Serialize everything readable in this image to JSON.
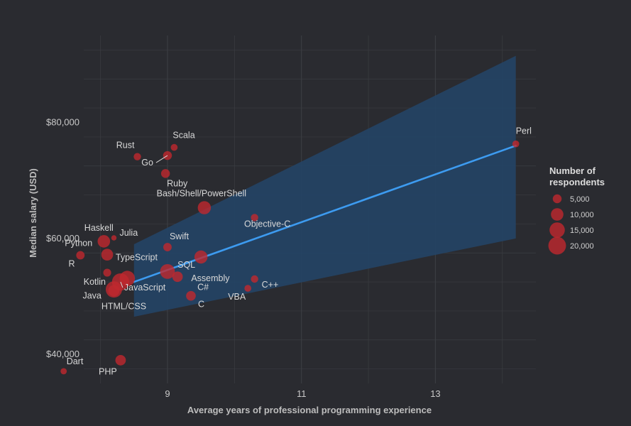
{
  "chart_data": {
    "type": "scatter",
    "x_label": "Average years of professional programming experience",
    "y_label": "Median salary (USD)",
    "xlim": [
      7.75,
      14.5
    ],
    "ylim": [
      35000,
      95000
    ],
    "x_ticks": [
      9,
      11,
      13
    ],
    "x_tick_labels": [
      "9",
      "11",
      "13"
    ],
    "y_ticks": [
      40000,
      60000,
      80000
    ],
    "y_tick_labels": [
      "$40,000",
      "$60,000",
      "$80,000"
    ],
    "regression": {
      "x_start": 8.5,
      "y_start": 52500,
      "x_end": 14.2,
      "y_end": 76000,
      "band_start": [
        46500,
        59000
      ],
      "band_end": [
        60000,
        91500
      ]
    },
    "points": [
      {
        "name": "Perl",
        "x": 14.2,
        "y": 76300,
        "size": 3000
      },
      {
        "name": "Scala",
        "x": 9.1,
        "y": 75700,
        "size": 3000
      },
      {
        "name": "Go",
        "x": 9.0,
        "y": 74300,
        "size": 5000
      },
      {
        "name": "Rust",
        "x": 8.55,
        "y": 74100,
        "size": 3500
      },
      {
        "name": "Ruby",
        "x": 8.97,
        "y": 71200,
        "size": 5000
      },
      {
        "name": "Bash/Shell/PowerShell",
        "x": 9.55,
        "y": 65300,
        "size": 11000
      },
      {
        "name": "Objective-C",
        "x": 10.3,
        "y": 63600,
        "size": 3500
      },
      {
        "name": "Haskell",
        "x": 8.05,
        "y": 59500,
        "size": 10000
      },
      {
        "name": "Julia",
        "x": 8.2,
        "y": 60100,
        "size": 1800
      },
      {
        "name": "Swift",
        "x": 9.0,
        "y": 58500,
        "size": 4500
      },
      {
        "name": "Python",
        "x": 7.7,
        "y": 57100,
        "size": 4500
      },
      {
        "name": "R",
        "x": 8.1,
        "y": 57200,
        "size": 9000
      },
      {
        "name": "SQL",
        "x": 9.5,
        "y": 56800,
        "size": 11000
      },
      {
        "name": "TypeScript",
        "x": 9.0,
        "y": 54300,
        "size": 14000
      },
      {
        "name": "Kotlin",
        "x": 8.1,
        "y": 54100,
        "size": 4000
      },
      {
        "name": "C#",
        "x": 9.15,
        "y": 53400,
        "size": 7000
      },
      {
        "name": "C++",
        "x": 10.3,
        "y": 53000,
        "size": 3500
      },
      {
        "name": "Assembly",
        "x": 8.4,
        "y": 53100,
        "size": 15000
      },
      {
        "name": "JavaScript",
        "x": 8.3,
        "y": 52500,
        "size": 19000
      },
      {
        "name": "HTML/CSS",
        "x": 8.2,
        "y": 51200,
        "size": 17000
      },
      {
        "name": "Java",
        "x": 8.2,
        "y": 51000,
        "size": 8000
      },
      {
        "name": "VBA",
        "x": 10.2,
        "y": 51400,
        "size": 3000
      },
      {
        "name": "C",
        "x": 9.35,
        "y": 50100,
        "size": 6000
      },
      {
        "name": "PHP",
        "x": 8.3,
        "y": 39000,
        "size": 7000
      },
      {
        "name": "Dart",
        "x": 7.45,
        "y": 37100,
        "size": 2500
      }
    ],
    "legend": {
      "title_line1": "Number of",
      "title_line2": "respondents",
      "items": [
        {
          "label": "5,000",
          "size": 5000
        },
        {
          "label": "10,000",
          "size": 10000
        },
        {
          "label": "15,000",
          "size": 15000
        },
        {
          "label": "20,000",
          "size": 20000
        }
      ]
    },
    "colors": {
      "background": "#2a2b30",
      "grid": "#3b3d42",
      "point": "#c0282e",
      "line": "#3d9bf0",
      "band": "#244466"
    }
  }
}
